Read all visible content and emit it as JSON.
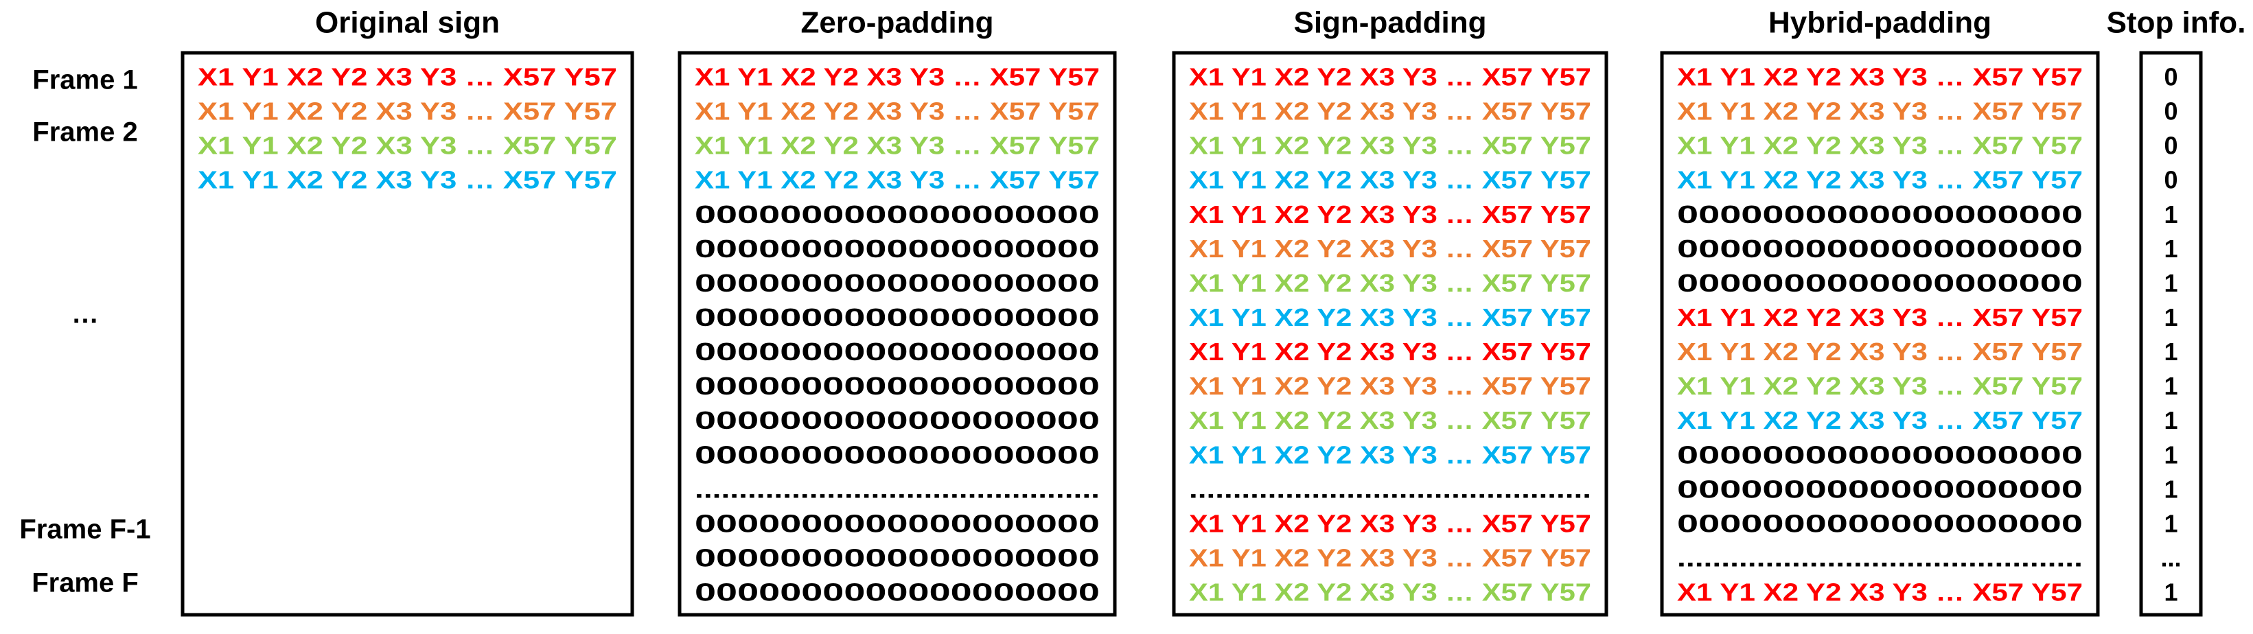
{
  "frame_labels": [
    "Frame 1",
    "Frame 2",
    "…",
    "Frame F-1",
    "Frame F"
  ],
  "panels": [
    {
      "title": "Original sign",
      "rows": [
        {
          "text": "X1 Y1 X2 Y2 X3 Y3 … X57 Y57",
          "color": "#ff0000"
        },
        {
          "text": "X1 Y1 X2 Y2 X3 Y3 … X57 Y57",
          "color": "#ed7d31"
        },
        {
          "text": "X1 Y1 X2 Y2 X3 Y3 … X57 Y57",
          "color": "#92d050"
        },
        {
          "text": "X1 Y1 X2 Y2 X3 Y3 … X57 Y57",
          "color": "#00b0f0"
        }
      ]
    },
    {
      "title": "Zero-padding",
      "rows": [
        {
          "text": "X1 Y1 X2 Y2 X3 Y3 … X57 Y57",
          "color": "#ff0000"
        },
        {
          "text": "X1 Y1 X2 Y2 X3 Y3 … X57 Y57",
          "color": "#ed7d31"
        },
        {
          "text": "X1 Y1 X2 Y2 X3 Y3 … X57 Y57",
          "color": "#92d050"
        },
        {
          "text": "X1 Y1 X2 Y2 X3 Y3 … X57 Y57",
          "color": "#00b0f0"
        },
        {
          "text": "0000000000000000000",
          "color": "#000000"
        },
        {
          "text": "0000000000000000000",
          "color": "#000000"
        },
        {
          "text": "0000000000000000000",
          "color": "#000000"
        },
        {
          "text": "0000000000000000000",
          "color": "#000000"
        },
        {
          "text": "0000000000000000000",
          "color": "#000000"
        },
        {
          "text": "0000000000000000000",
          "color": "#000000"
        },
        {
          "text": "0000000000000000000",
          "color": "#000000"
        },
        {
          "text": "0000000000000000000",
          "color": "#000000"
        },
        {
          "text": "..............................................",
          "color": "#000000"
        },
        {
          "text": "0000000000000000000",
          "color": "#000000"
        },
        {
          "text": "0000000000000000000",
          "color": "#000000"
        },
        {
          "text": "0000000000000000000",
          "color": "#000000"
        }
      ]
    },
    {
      "title": "Sign-padding",
      "rows": [
        {
          "text": "X1 Y1 X2 Y2 X3 Y3 … X57 Y57",
          "color": "#ff0000"
        },
        {
          "text": "X1 Y1 X2 Y2 X3 Y3 … X57 Y57",
          "color": "#ed7d31"
        },
        {
          "text": "X1 Y1 X2 Y2 X3 Y3 … X57 Y57",
          "color": "#92d050"
        },
        {
          "text": "X1 Y1 X2 Y2 X3 Y3 … X57 Y57",
          "color": "#00b0f0"
        },
        {
          "text": "X1 Y1 X2 Y2 X3 Y3 … X57 Y57",
          "color": "#ff0000"
        },
        {
          "text": "X1 Y1 X2 Y2 X3 Y3 … X57 Y57",
          "color": "#ed7d31"
        },
        {
          "text": "X1 Y1 X2 Y2 X3 Y3 … X57 Y57",
          "color": "#92d050"
        },
        {
          "text": "X1 Y1 X2 Y2 X3 Y3 … X57 Y57",
          "color": "#00b0f0"
        },
        {
          "text": "X1 Y1 X2 Y2 X3 Y3 … X57 Y57",
          "color": "#ff0000"
        },
        {
          "text": "X1 Y1 X2 Y2 X3 Y3 … X57 Y57",
          "color": "#ed7d31"
        },
        {
          "text": "X1 Y1 X2 Y2 X3 Y3 … X57 Y57",
          "color": "#92d050"
        },
        {
          "text": "X1 Y1 X2 Y2 X3 Y3 … X57 Y57",
          "color": "#00b0f0"
        },
        {
          "text": "..............................................",
          "color": "#000000"
        },
        {
          "text": "X1 Y1 X2 Y2 X3 Y3 … X57 Y57",
          "color": "#ff0000"
        },
        {
          "text": "X1 Y1 X2 Y2 X3 Y3 … X57 Y57",
          "color": "#ed7d31"
        },
        {
          "text": "X1 Y1 X2 Y2 X3 Y3 … X57 Y57",
          "color": "#92d050"
        }
      ]
    },
    {
      "title": "Hybrid-padding",
      "rows": [
        {
          "text": "X1 Y1 X2 Y2 X3 Y3 … X57 Y57",
          "color": "#ff0000"
        },
        {
          "text": "X1 Y1 X2 Y2 X3 Y3 … X57 Y57",
          "color": "#ed7d31"
        },
        {
          "text": "X1 Y1 X2 Y2 X3 Y3 … X57 Y57",
          "color": "#92d050"
        },
        {
          "text": "X1 Y1 X2 Y2 X3 Y3 … X57 Y57",
          "color": "#00b0f0"
        },
        {
          "text": "0000000000000000000",
          "color": "#000000"
        },
        {
          "text": "0000000000000000000",
          "color": "#000000"
        },
        {
          "text": "0000000000000000000",
          "color": "#000000"
        },
        {
          "text": "X1 Y1 X2 Y2 X3 Y3 … X57 Y57",
          "color": "#ff0000"
        },
        {
          "text": "X1 Y1 X2 Y2 X3 Y3 … X57 Y57",
          "color": "#ed7d31"
        },
        {
          "text": "X1 Y1 X2 Y2 X3 Y3 … X57 Y57",
          "color": "#92d050"
        },
        {
          "text": "X1 Y1 X2 Y2 X3 Y3 … X57 Y57",
          "color": "#00b0f0"
        },
        {
          "text": "0000000000000000000",
          "color": "#000000"
        },
        {
          "text": "0000000000000000000",
          "color": "#000000"
        },
        {
          "text": "0000000000000000000",
          "color": "#000000"
        },
        {
          "text": "..............................................",
          "color": "#000000"
        },
        {
          "text": "X1 Y1 X2 Y2 X3 Y3 … X57 Y57",
          "color": "#ff0000"
        }
      ]
    }
  ],
  "stop_info": {
    "title": "Stop info.",
    "values": [
      0,
      0,
      0,
      0,
      1,
      1,
      1,
      1,
      1,
      1,
      1,
      1,
      1,
      1,
      "...",
      1
    ]
  }
}
